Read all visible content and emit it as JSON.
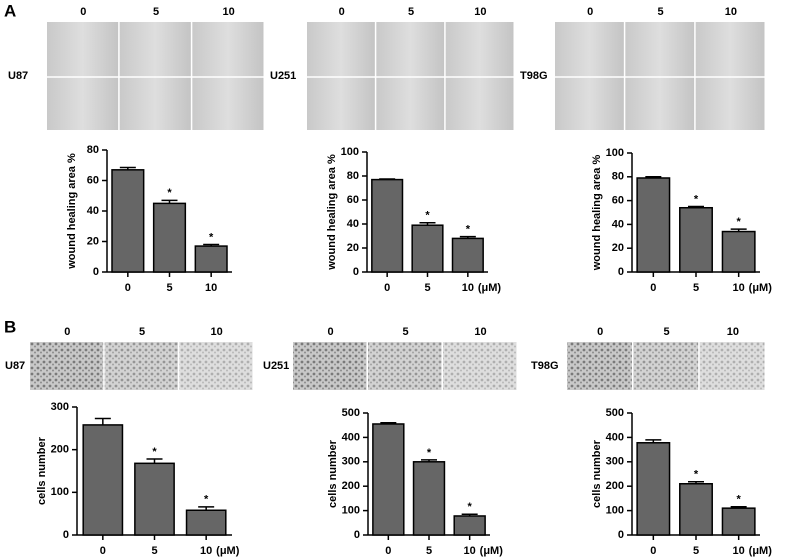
{
  "panels": [
    {
      "label": "A",
      "image_rows": [
        {
          "cell_line": "U87",
          "columns": [
            "0",
            "5",
            "10"
          ]
        },
        {
          "cell_line": "U251",
          "columns": [
            "0",
            "5",
            "10"
          ]
        },
        {
          "cell_line": "T98G",
          "columns": [
            "0",
            "5",
            "10"
          ]
        }
      ]
    },
    {
      "label": "B",
      "image_rows": [
        {
          "cell_line": "U87",
          "columns": [
            "0",
            "5",
            "10"
          ]
        },
        {
          "cell_line": "U251",
          "columns": [
            "0",
            "5",
            "10"
          ]
        },
        {
          "cell_line": "T98G",
          "columns": [
            "0",
            "5",
            "10"
          ]
        }
      ]
    }
  ],
  "chart_data": [
    {
      "type": "bar",
      "ylabel": "wound healing area %",
      "categories": [
        "0",
        "5",
        "10"
      ],
      "values": [
        67,
        45,
        17
      ],
      "errors": [
        1.5,
        2,
        1
      ],
      "markers": [
        null,
        "*",
        "*"
      ],
      "color": "#666666",
      "ylim": [
        0,
        80
      ],
      "yticks": [
        0,
        20,
        40,
        60,
        80
      ]
    },
    {
      "type": "bar",
      "ylabel": "wound healing area %",
      "categories": [
        "0",
        "5",
        "10"
      ],
      "values": [
        77,
        39,
        28
      ],
      "errors": [
        0.5,
        2,
        1.5
      ],
      "markers": [
        null,
        "*",
        "*"
      ],
      "x_unit": "(μM)",
      "color": "#666666",
      "ylim": [
        0,
        100
      ],
      "yticks": [
        0,
        20,
        40,
        60,
        80,
        100
      ]
    },
    {
      "type": "bar",
      "ylabel": "wound healing area %",
      "categories": [
        "0",
        "5",
        "10"
      ],
      "values": [
        79,
        54,
        34
      ],
      "errors": [
        1,
        1,
        2
      ],
      "markers": [
        null,
        "*",
        "*"
      ],
      "x_unit": "(μM)",
      "color": "#666666",
      "ylim": [
        0,
        100
      ],
      "yticks": [
        0,
        20,
        40,
        60,
        80,
        100
      ]
    },
    {
      "type": "bar",
      "ylabel": "cells number",
      "categories": [
        "0",
        "5",
        "10"
      ],
      "values": [
        258,
        168,
        58
      ],
      "errors": [
        15,
        10,
        8
      ],
      "markers": [
        null,
        "*",
        "*"
      ],
      "x_unit": "(μM)",
      "color": "#666666",
      "ylim": [
        0,
        300
      ],
      "yticks": [
        0,
        100,
        200,
        300
      ]
    },
    {
      "type": "bar",
      "ylabel": "cells number",
      "categories": [
        "0",
        "5",
        "10"
      ],
      "values": [
        455,
        300,
        78
      ],
      "errors": [
        5,
        8,
        7
      ],
      "markers": [
        null,
        "*",
        "*"
      ],
      "x_unit": "(μM)",
      "color": "#666666",
      "ylim": [
        0,
        500
      ],
      "yticks": [
        0,
        100,
        200,
        300,
        400,
        500
      ]
    },
    {
      "type": "bar",
      "ylabel": "cells number",
      "categories": [
        "0",
        "5",
        "10"
      ],
      "values": [
        378,
        210,
        110
      ],
      "errors": [
        12,
        8,
        6
      ],
      "markers": [
        null,
        "*",
        "*"
      ],
      "x_unit": "(μM)",
      "color": "#666666",
      "ylim": [
        0,
        500
      ],
      "yticks": [
        0,
        100,
        200,
        300,
        400,
        500
      ]
    }
  ]
}
